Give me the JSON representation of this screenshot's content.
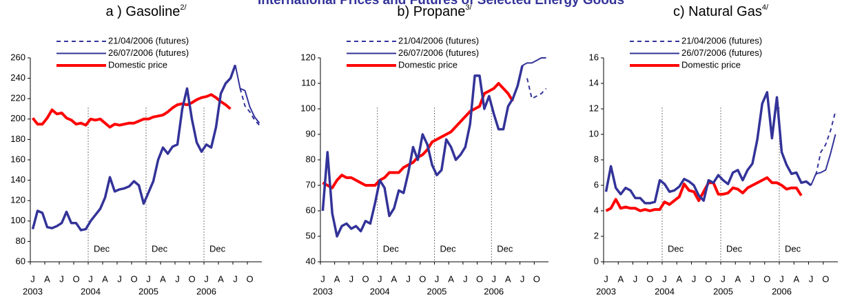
{
  "title": "International Prices and Futures of Selected Energy Goods",
  "chart_data": [
    {
      "type": "line",
      "title": "a ) Gasoline",
      "title_note": "2/",
      "categories": [
        "J",
        null,
        null,
        "A",
        null,
        null,
        "J",
        null,
        null,
        "O",
        null,
        null,
        "J",
        null,
        null,
        "A",
        null,
        null,
        "J",
        null,
        null,
        "O",
        null,
        null,
        "J",
        null,
        null,
        "A",
        null,
        null,
        "J",
        null,
        null,
        "O",
        null,
        null,
        "J",
        null,
        null,
        "A",
        null,
        null,
        "J",
        null,
        null,
        "O",
        null,
        null
      ],
      "years": [
        "2003",
        "2004",
        "2005",
        "2006"
      ],
      "markers": [
        "Dec",
        "Dec",
        "Dec"
      ],
      "ylim": [
        60,
        260
      ],
      "yticks": [
        60,
        80,
        100,
        120,
        140,
        160,
        180,
        200,
        220,
        240,
        260
      ],
      "legend": "upper left",
      "series": [
        {
          "name": "21/04/2006 (futures)",
          "color": "#333399",
          "dashed": true,
          "values": [
            null,
            null,
            null,
            null,
            null,
            null,
            null,
            null,
            null,
            null,
            null,
            null,
            null,
            null,
            null,
            null,
            null,
            null,
            null,
            null,
            null,
            null,
            null,
            null,
            null,
            null,
            null,
            null,
            null,
            null,
            null,
            null,
            null,
            null,
            null,
            null,
            null,
            null,
            null,
            null,
            null,
            null,
            null,
            230,
            213,
            207,
            199,
            194
          ]
        },
        {
          "name": "26/07/2006 (futures)",
          "color": "#333399",
          "values": [
            null,
            null,
            null,
            null,
            null,
            null,
            null,
            null,
            null,
            null,
            null,
            null,
            null,
            null,
            null,
            null,
            null,
            null,
            null,
            null,
            null,
            null,
            null,
            null,
            null,
            null,
            null,
            null,
            null,
            null,
            null,
            null,
            null,
            null,
            null,
            null,
            null,
            null,
            null,
            null,
            null,
            null,
            253,
            230,
            228,
            212,
            202,
            196
          ]
        },
        {
          "name": "Domestic price",
          "color": "#ff0000",
          "values": [
            201,
            195,
            195,
            201,
            209,
            205,
            206,
            201,
            199,
            195,
            196,
            194,
            200,
            199,
            200,
            196,
            192,
            195,
            194,
            195,
            196,
            196,
            198,
            200,
            200,
            202,
            203,
            204,
            207,
            211,
            214,
            215,
            214,
            216,
            219,
            221,
            222,
            224,
            221,
            217,
            214,
            210,
            null,
            null,
            null,
            null,
            null,
            null
          ]
        },
        {
          "color": "#333399",
          "values": [
            92,
            110,
            108,
            94,
            93,
            95,
            98,
            109,
            98,
            98,
            91,
            92,
            100,
            106,
            112,
            123,
            143,
            129,
            131,
            132,
            134,
            139,
            135,
            117,
            128,
            139,
            160,
            172,
            166,
            173,
            175,
            210,
            230,
            200,
            177,
            168,
            175,
            172,
            192,
            225,
            235,
            240,
            253,
            null,
            null,
            null,
            null,
            null
          ]
        }
      ]
    },
    {
      "type": "line",
      "title": "b) Propane",
      "title_note": "3/",
      "categories": [
        "J",
        null,
        null,
        "A",
        null,
        null,
        "J",
        null,
        null,
        "O",
        null,
        null,
        "J",
        null,
        null,
        "A",
        null,
        null,
        "J",
        null,
        null,
        "O",
        null,
        null,
        "J",
        null,
        null,
        "A",
        null,
        null,
        "J",
        null,
        null,
        "O",
        null,
        null,
        "J",
        null,
        null,
        "A",
        null,
        null,
        "J",
        null,
        null,
        "O",
        null,
        null
      ],
      "years": [
        "2003",
        "2004",
        "2005",
        "2006"
      ],
      "markers": [
        "Dec",
        "Dec",
        "Dec"
      ],
      "ylim": [
        40,
        120
      ],
      "yticks": [
        40,
        50,
        60,
        70,
        80,
        90,
        100,
        110,
        120
      ],
      "legend": "upper left",
      "series": [
        {
          "name": "21/04/2006 (futures)",
          "color": "#333399",
          "dashed": true,
          "values": [
            null,
            null,
            null,
            null,
            null,
            null,
            null,
            null,
            null,
            null,
            null,
            null,
            null,
            null,
            null,
            null,
            null,
            null,
            null,
            null,
            null,
            null,
            null,
            null,
            null,
            null,
            null,
            null,
            null,
            null,
            null,
            null,
            null,
            null,
            null,
            null,
            null,
            null,
            null,
            null,
            null,
            null,
            null,
            112,
            104,
            105,
            106,
            108
          ]
        },
        {
          "name": "26/07/2006 (futures)",
          "color": "#333399",
          "values": [
            null,
            null,
            null,
            null,
            null,
            null,
            null,
            null,
            null,
            null,
            null,
            null,
            null,
            null,
            null,
            null,
            null,
            null,
            null,
            null,
            null,
            null,
            null,
            null,
            null,
            null,
            null,
            null,
            null,
            null,
            null,
            null,
            null,
            null,
            null,
            null,
            null,
            null,
            null,
            null,
            null,
            null,
            117,
            118,
            118,
            119,
            120,
            120
          ]
        },
        {
          "name": "Domestic price",
          "color": "#ff0000",
          "values": [
            71,
            70,
            69,
            72,
            74,
            73,
            73,
            72,
            71,
            70,
            70,
            70,
            72,
            73,
            75,
            75,
            75,
            77,
            78,
            79,
            81,
            82,
            84,
            87,
            88,
            89,
            90,
            91,
            93,
            95,
            97,
            99,
            100,
            101,
            106,
            107,
            108,
            110,
            108,
            106,
            103,
            null,
            null,
            null,
            null,
            null,
            null,
            null
          ]
        },
        {
          "color": "#333399",
          "values": [
            60,
            83,
            59,
            50,
            54,
            55,
            53,
            54,
            52,
            56,
            55,
            63,
            72,
            69,
            58,
            61,
            68,
            67,
            75,
            85,
            80,
            90,
            86,
            78,
            74,
            76,
            88,
            85,
            80,
            82,
            85,
            94,
            113,
            113,
            100,
            105,
            98,
            92,
            92,
            101,
            104,
            109,
            117,
            null,
            null,
            null,
            null,
            null
          ]
        }
      ]
    },
    {
      "type": "line",
      "title": "c) Natural Gas",
      "title_note": "4/",
      "categories": [
        "J",
        null,
        null,
        "A",
        null,
        null,
        "J",
        null,
        null,
        "O",
        null,
        null,
        "J",
        null,
        null,
        "A",
        null,
        null,
        "J",
        null,
        null,
        "O",
        null,
        null,
        "J",
        null,
        null,
        "A",
        null,
        null,
        "J",
        null,
        null,
        "O",
        null,
        null,
        "J",
        null,
        null,
        "A",
        null,
        null,
        "J",
        null,
        null,
        "O",
        null,
        null
      ],
      "years": [
        "2003",
        "2004",
        "2005",
        "2006"
      ],
      "markers": [
        "Dec",
        "Dec",
        "Dec"
      ],
      "ylim": [
        0,
        16
      ],
      "yticks": [
        0,
        2,
        4,
        6,
        8,
        10,
        12,
        14,
        16
      ],
      "legend": "upper left",
      "series": [
        {
          "name": "21/04/2006 (futures)",
          "color": "#333399",
          "dashed": true,
          "values": [
            null,
            null,
            null,
            null,
            null,
            null,
            null,
            null,
            null,
            null,
            null,
            null,
            null,
            null,
            null,
            null,
            null,
            null,
            null,
            null,
            null,
            null,
            null,
            null,
            null,
            null,
            null,
            null,
            null,
            null,
            null,
            null,
            null,
            null,
            null,
            null,
            null,
            null,
            null,
            null,
            null,
            null,
            null,
            6.8,
            8.6,
            9.2,
            10.3,
            11.8
          ]
        },
        {
          "name": "26/07/2006 (futures)",
          "color": "#333399",
          "values": [
            null,
            null,
            null,
            null,
            null,
            null,
            null,
            null,
            null,
            null,
            null,
            null,
            null,
            null,
            null,
            null,
            null,
            null,
            null,
            null,
            null,
            null,
            null,
            null,
            null,
            null,
            null,
            null,
            null,
            null,
            null,
            null,
            null,
            null,
            null,
            null,
            null,
            null,
            null,
            null,
            null,
            null,
            6.0,
            6.9,
            7.0,
            7.2,
            8.5,
            10.0
          ]
        },
        {
          "name": "Domestic price",
          "color": "#ff0000",
          "values": [
            4.0,
            4.2,
            4.9,
            4.2,
            4.3,
            4.2,
            4.2,
            4.0,
            4.1,
            4.0,
            4.1,
            4.1,
            4.7,
            4.5,
            4.8,
            5.1,
            6.1,
            5.6,
            5.5,
            4.8,
            5.5,
            6.2,
            6.2,
            5.3,
            5.3,
            5.4,
            5.8,
            5.7,
            5.4,
            5.8,
            6.0,
            6.2,
            6.4,
            6.6,
            6.2,
            6.2,
            6.0,
            5.7,
            5.8,
            5.8,
            5.2,
            null,
            null,
            null,
            null,
            null,
            null,
            null
          ]
        },
        {
          "color": "#333399",
          "values": [
            5.5,
            7.5,
            5.8,
            5.3,
            5.8,
            5.6,
            5.0,
            5.0,
            4.6,
            4.6,
            4.7,
            6.4,
            6.1,
            5.5,
            5.6,
            5.9,
            6.5,
            6.3,
            6.0,
            5.2,
            4.8,
            6.4,
            6.2,
            6.8,
            6.4,
            6.1,
            7.0,
            7.2,
            6.4,
            7.2,
            7.7,
            9.6,
            12.4,
            13.3,
            9.7,
            12.9,
            8.6,
            7.6,
            6.9,
            7.0,
            6.2,
            6.3,
            6.0,
            null,
            null,
            null,
            null,
            null
          ]
        }
      ]
    }
  ]
}
